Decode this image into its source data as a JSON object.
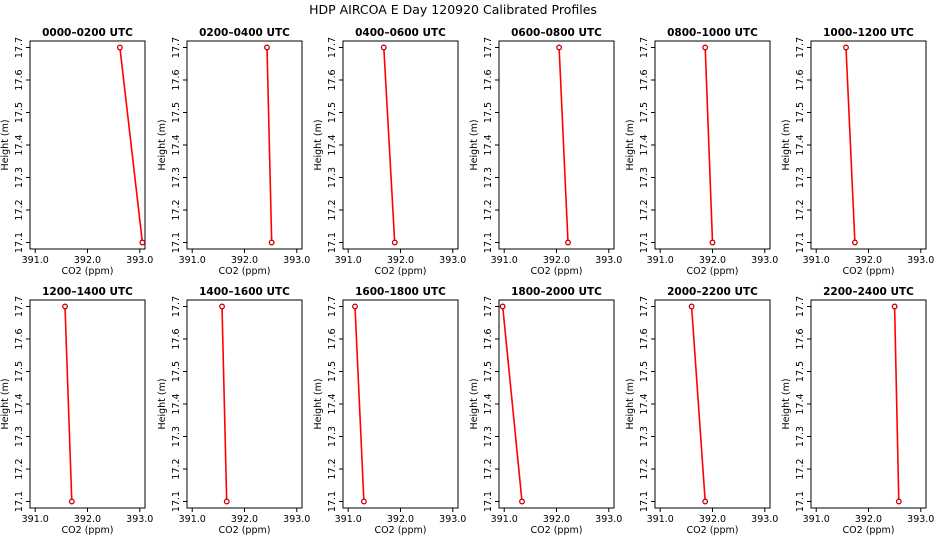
{
  "title": "HDP AIRCOA E  Day 120920  Calibrated Profiles",
  "colors": {
    "line": "#ff0000",
    "marker": "#cc0000",
    "axis": "#000000"
  },
  "chart_data": [
    {
      "type": "line",
      "title": "0000–0200 UTC",
      "xlabel": "CO2 (ppm)",
      "ylabel": "Height (m)",
      "xlim": [
        390.9,
        393.1
      ],
      "ylim": [
        17.08,
        17.72
      ],
      "xticks": [
        "391.0",
        "392.0",
        "393.0"
      ],
      "yticks": [
        "17.1",
        "17.2",
        "17.3",
        "17.4",
        "17.5",
        "17.6",
        "17.7"
      ],
      "grid": false,
      "points": [
        {
          "x": 392.62,
          "y": 17.7
        },
        {
          "x": 393.05,
          "y": 17.1
        }
      ]
    },
    {
      "type": "line",
      "title": "0200–0400 UTC",
      "xlabel": "CO2 (ppm)",
      "ylabel": "Height (m)",
      "xlim": [
        390.9,
        393.1
      ],
      "ylim": [
        17.08,
        17.72
      ],
      "xticks": [
        "391.0",
        "392.0",
        "393.0"
      ],
      "yticks": [
        "17.1",
        "17.2",
        "17.3",
        "17.4",
        "17.5",
        "17.6",
        "17.7"
      ],
      "grid": false,
      "points": [
        {
          "x": 392.43,
          "y": 17.7
        },
        {
          "x": 392.52,
          "y": 17.1
        }
      ]
    },
    {
      "type": "line",
      "title": "0400–0600 UTC",
      "xlabel": "CO2 (ppm)",
      "ylabel": "Height (m)",
      "xlim": [
        390.9,
        393.1
      ],
      "ylim": [
        17.08,
        17.72
      ],
      "xticks": [
        "391.0",
        "392.0",
        "393.0"
      ],
      "yticks": [
        "17.1",
        "17.2",
        "17.3",
        "17.4",
        "17.5",
        "17.6",
        "17.7"
      ],
      "grid": false,
      "points": [
        {
          "x": 391.68,
          "y": 17.7
        },
        {
          "x": 391.89,
          "y": 17.1
        }
      ]
    },
    {
      "type": "line",
      "title": "0600–0800 UTC",
      "xlabel": "CO2 (ppm)",
      "ylabel": "Height (m)",
      "xlim": [
        390.9,
        393.1
      ],
      "ylim": [
        17.08,
        17.72
      ],
      "xticks": [
        "391.0",
        "392.0",
        "393.0"
      ],
      "yticks": [
        "17.1",
        "17.2",
        "17.3",
        "17.4",
        "17.5",
        "17.6",
        "17.7"
      ],
      "grid": false,
      "points": [
        {
          "x": 392.05,
          "y": 17.7
        },
        {
          "x": 392.22,
          "y": 17.1
        }
      ]
    },
    {
      "type": "line",
      "title": "0800–1000 UTC",
      "xlabel": "CO2 (ppm)",
      "ylabel": "Height (m)",
      "xlim": [
        390.9,
        393.1
      ],
      "ylim": [
        17.08,
        17.72
      ],
      "xticks": [
        "391.0",
        "392.0",
        "393.0"
      ],
      "yticks": [
        "17.1",
        "17.2",
        "17.3",
        "17.4",
        "17.5",
        "17.6",
        "17.7"
      ],
      "grid": false,
      "points": [
        {
          "x": 391.86,
          "y": 17.7
        },
        {
          "x": 392.0,
          "y": 17.1
        }
      ]
    },
    {
      "type": "line",
      "title": "1000–1200 UTC",
      "xlabel": "CO2 (ppm)",
      "ylabel": "Height (m)",
      "xlim": [
        390.9,
        393.1
      ],
      "ylim": [
        17.08,
        17.72
      ],
      "xticks": [
        "391.0",
        "392.0",
        "393.0"
      ],
      "yticks": [
        "17.1",
        "17.2",
        "17.3",
        "17.4",
        "17.5",
        "17.6",
        "17.7"
      ],
      "grid": false,
      "points": [
        {
          "x": 391.57,
          "y": 17.7
        },
        {
          "x": 391.74,
          "y": 17.1
        }
      ]
    },
    {
      "type": "line",
      "title": "1200–1400 UTC",
      "xlabel": "CO2 (ppm)",
      "ylabel": "Height (m)",
      "xlim": [
        390.9,
        393.1
      ],
      "ylim": [
        17.08,
        17.72
      ],
      "xticks": [
        "391.0",
        "392.0",
        "393.0"
      ],
      "yticks": [
        "17.1",
        "17.2",
        "17.3",
        "17.4",
        "17.5",
        "17.6",
        "17.7"
      ],
      "grid": false,
      "points": [
        {
          "x": 391.57,
          "y": 17.7
        },
        {
          "x": 391.7,
          "y": 17.1
        }
      ]
    },
    {
      "type": "line",
      "title": "1400–1600 UTC",
      "xlabel": "CO2 (ppm)",
      "ylabel": "Height (m)",
      "xlim": [
        390.9,
        393.1
      ],
      "ylim": [
        17.08,
        17.72
      ],
      "xticks": [
        "391.0",
        "392.0",
        "393.0"
      ],
      "yticks": [
        "17.1",
        "17.2",
        "17.3",
        "17.4",
        "17.5",
        "17.6",
        "17.7"
      ],
      "grid": false,
      "points": [
        {
          "x": 391.57,
          "y": 17.7
        },
        {
          "x": 391.66,
          "y": 17.1
        }
      ]
    },
    {
      "type": "line",
      "title": "1600–1800 UTC",
      "xlabel": "CO2 (ppm)",
      "ylabel": "Height (m)",
      "xlim": [
        390.9,
        393.1
      ],
      "ylim": [
        17.08,
        17.72
      ],
      "xticks": [
        "391.0",
        "392.0",
        "393.0"
      ],
      "yticks": [
        "17.1",
        "17.2",
        "17.3",
        "17.4",
        "17.5",
        "17.6",
        "17.7"
      ],
      "grid": false,
      "points": [
        {
          "x": 391.13,
          "y": 17.7
        },
        {
          "x": 391.3,
          "y": 17.1
        }
      ]
    },
    {
      "type": "line",
      "title": "1800–2000 UTC",
      "xlabel": "CO2 (ppm)",
      "ylabel": "Height (m)",
      "xlim": [
        390.9,
        393.1
      ],
      "ylim": [
        17.08,
        17.72
      ],
      "xticks": [
        "391.0",
        "392.0",
        "393.0"
      ],
      "yticks": [
        "17.1",
        "17.2",
        "17.3",
        "17.4",
        "17.5",
        "17.6",
        "17.7"
      ],
      "grid": false,
      "points": [
        {
          "x": 390.97,
          "y": 17.7
        },
        {
          "x": 391.34,
          "y": 17.1
        }
      ]
    },
    {
      "type": "line",
      "title": "2000–2200 UTC",
      "xlabel": "CO2 (ppm)",
      "ylabel": "Height (m)",
      "xlim": [
        390.9,
        393.1
      ],
      "ylim": [
        17.08,
        17.72
      ],
      "xticks": [
        "391.0",
        "392.0",
        "393.0"
      ],
      "yticks": [
        "17.1",
        "17.2",
        "17.3",
        "17.4",
        "17.5",
        "17.6",
        "17.7"
      ],
      "grid": false,
      "points": [
        {
          "x": 391.6,
          "y": 17.7
        },
        {
          "x": 391.86,
          "y": 17.1
        }
      ]
    },
    {
      "type": "line",
      "title": "2200–2400 UTC",
      "xlabel": "CO2 (ppm)",
      "ylabel": "Height (m)",
      "xlim": [
        390.9,
        393.1
      ],
      "ylim": [
        17.08,
        17.72
      ],
      "xticks": [
        "391.0",
        "392.0",
        "393.0"
      ],
      "yticks": [
        "17.1",
        "17.2",
        "17.3",
        "17.4",
        "17.5",
        "17.6",
        "17.7"
      ],
      "grid": false,
      "points": [
        {
          "x": 392.5,
          "y": 17.7
        },
        {
          "x": 392.58,
          "y": 17.1
        }
      ]
    }
  ]
}
